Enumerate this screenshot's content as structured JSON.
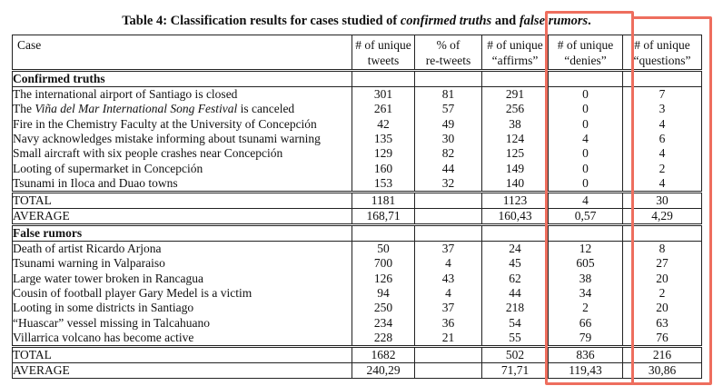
{
  "caption": {
    "prefix": "Table 4:  Classification results for cases studied of ",
    "italic1": "confirmed truths",
    "middle": " and ",
    "italic2": "false rumors",
    "suffix": "."
  },
  "table": {
    "headers": [
      {
        "lines": [
          "Case"
        ]
      },
      {
        "lines": [
          "# of unique",
          "tweets"
        ]
      },
      {
        "lines": [
          "% of",
          "re-tweets"
        ]
      },
      {
        "lines": [
          "# of unique",
          "“affirms”"
        ]
      },
      {
        "lines": [
          "# of unique",
          "“denies”"
        ]
      },
      {
        "lines": [
          "# of unique",
          "“questions”"
        ]
      }
    ],
    "sections": [
      {
        "label": "Confirmed truths",
        "rows": [
          {
            "case": [
              {
                "t": "The international airport of Santiago is closed"
              }
            ],
            "values": [
              "301",
              "81",
              "291",
              "0",
              "7"
            ]
          },
          {
            "case": [
              {
                "t": "The "
              },
              {
                "t": "Viña del Mar International Song Festival",
                "i": true
              },
              {
                "t": " is canceled"
              }
            ],
            "values": [
              "261",
              "57",
              "256",
              "0",
              "3"
            ]
          },
          {
            "case": [
              {
                "t": "Fire in the Chemistry Faculty at the University of Concepción"
              }
            ],
            "values": [
              "42",
              "49",
              "38",
              "0",
              "4"
            ]
          },
          {
            "case": [
              {
                "t": "Navy acknowledges mistake informing about tsunami warning"
              }
            ],
            "values": [
              "135",
              "30",
              "124",
              "4",
              "6"
            ]
          },
          {
            "case": [
              {
                "t": "Small aircraft with six people crashes near Concepción"
              }
            ],
            "values": [
              "129",
              "82",
              "125",
              "0",
              "4"
            ]
          },
          {
            "case": [
              {
                "t": "Looting of supermarket in Concepción"
              }
            ],
            "values": [
              "160",
              "44",
              "149",
              "0",
              "2"
            ]
          },
          {
            "case": [
              {
                "t": "Tsunami in Iloca and Duao towns"
              }
            ],
            "values": [
              "153",
              "32",
              "140",
              "0",
              "4"
            ]
          }
        ],
        "total": {
          "label": "TOTAL",
          "values": [
            "1181",
            "",
            "1123",
            "4",
            "30"
          ]
        },
        "average": {
          "label": "AVERAGE",
          "values": [
            "168,71",
            "",
            "160,43",
            "0,57",
            "4,29"
          ]
        }
      },
      {
        "label": "False rumors",
        "rows": [
          {
            "case": [
              {
                "t": "Death of artist Ricardo Arjona"
              }
            ],
            "values": [
              "50",
              "37",
              "24",
              "12",
              "8"
            ]
          },
          {
            "case": [
              {
                "t": "Tsunami warning in Valparaiso"
              }
            ],
            "values": [
              "700",
              "4",
              "45",
              "605",
              "27"
            ]
          },
          {
            "case": [
              {
                "t": "Large water tower broken in Rancagua"
              }
            ],
            "values": [
              "126",
              "43",
              "62",
              "38",
              "20"
            ]
          },
          {
            "case": [
              {
                "t": "Cousin of football player Gary Medel is a victim"
              }
            ],
            "values": [
              "94",
              "4",
              "44",
              "34",
              "2"
            ]
          },
          {
            "case": [
              {
                "t": "Looting in some districts in Santiago"
              }
            ],
            "values": [
              "250",
              "37",
              "218",
              "2",
              "20"
            ]
          },
          {
            "case": [
              {
                "t": "“Huascar” vessel missing in Talcahuano"
              }
            ],
            "values": [
              "234",
              "36",
              "54",
              "66",
              "63"
            ]
          },
          {
            "case": [
              {
                "t": "Villarrica volcano has become active"
              }
            ],
            "values": [
              "228",
              "21",
              "55",
              "79",
              "76"
            ]
          }
        ],
        "total": {
          "label": "TOTAL",
          "values": [
            "1682",
            "",
            "502",
            "836",
            "216"
          ]
        },
        "average": {
          "label": "AVERAGE",
          "values": [
            "240,29",
            "",
            "71,71",
            "119,43",
            "30,86"
          ]
        }
      }
    ]
  },
  "annotations": {
    "highlight_color": "#ee6e5e",
    "boxes": [
      {
        "name": "denies-column-highlight",
        "column": "# of unique “denies”"
      },
      {
        "name": "questions-column-highlight",
        "column": "# of unique “questions”"
      }
    ]
  }
}
